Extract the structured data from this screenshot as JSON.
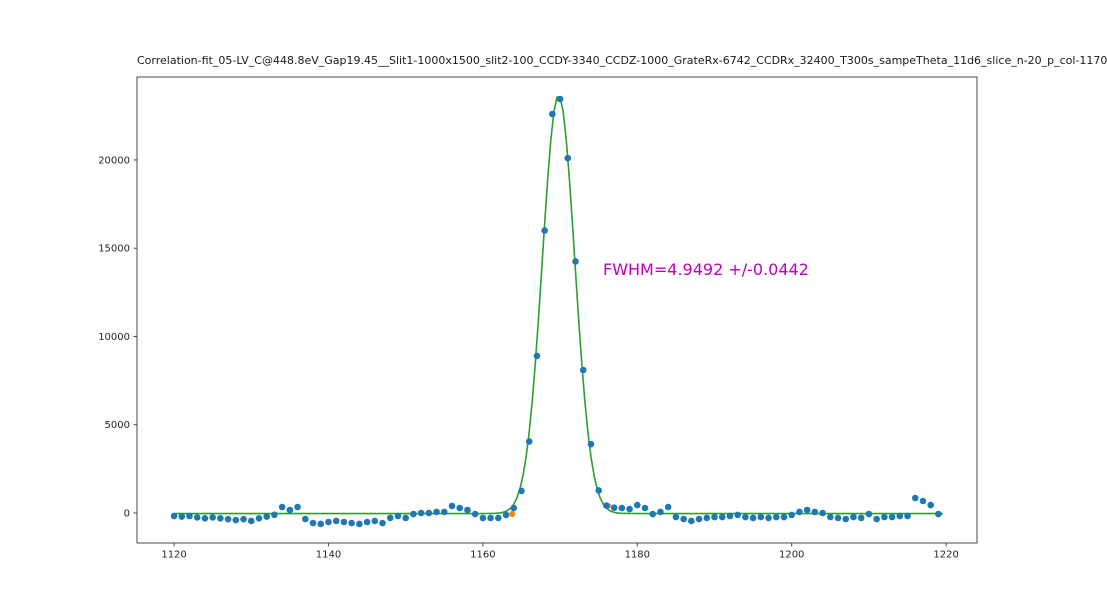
{
  "figure": {
    "background": "#ffffff"
  },
  "chart_data": {
    "type": "scatter",
    "title": "Correlation-fit_05-LV_C@448.8eV_Gap19.45__Slit1-1000x1500_slit2-100_CCDY-3340_CCDZ-1000_GrateRx-6742_CCDRx_32400_T300s_sampeTheta_11d6_slice_n-20_p_col-1170",
    "xlabel": "",
    "ylabel": "",
    "xlim": [
      1115.2,
      1224.0
    ],
    "ylim": [
      -1700,
      24700
    ],
    "x_ticks": [
      1120,
      1140,
      1160,
      1180,
      1200,
      1220
    ],
    "y_ticks": [
      0,
      5000,
      10000,
      15000,
      20000
    ],
    "grid": false,
    "legend": "none",
    "axes_color": "#4a4a4a",
    "tick_label_color": "#262626",
    "annotation": {
      "text": "FWHM=4.9492 +/-0.0442",
      "color": "#bf00bf",
      "x": 1175.5,
      "y": 13800
    },
    "series": [
      {
        "name": "secondary-markers",
        "type": "scatter",
        "color": "#ff7f0e",
        "marker_radius": 3.0,
        "x": [
          1163.8,
          1176.2
        ],
        "y": [
          -60,
          400
        ]
      },
      {
        "name": "gaussian-fit",
        "type": "line",
        "color": "#2ca02c",
        "line_width": 1.6,
        "fit_params": {
          "amplitude": 23700,
          "center": 1169.8,
          "sigma": 2.1016,
          "baseline": -30,
          "fwhm": 4.9492,
          "fwhm_err": 0.0442
        },
        "x_range": [
          1120,
          1219.8
        ],
        "sample_step": 0.4
      },
      {
        "name": "measured-data",
        "type": "scatter",
        "color": "#1f77b4",
        "marker_radius": 3.3,
        "x": [
          1120,
          1121,
          1122,
          1123,
          1124,
          1125,
          1126,
          1127,
          1128,
          1129,
          1130,
          1131,
          1132,
          1133,
          1134,
          1135,
          1136,
          1137,
          1138,
          1139,
          1140,
          1141,
          1142,
          1143,
          1144,
          1145,
          1146,
          1147,
          1148,
          1149,
          1150,
          1151,
          1152,
          1153,
          1154,
          1155,
          1156,
          1157,
          1158,
          1159,
          1160,
          1161,
          1162,
          1163,
          1164,
          1165,
          1166,
          1167,
          1168,
          1169,
          1170,
          1171,
          1172,
          1173,
          1174,
          1175,
          1176,
          1177,
          1178,
          1179,
          1180,
          1181,
          1182,
          1183,
          1184,
          1185,
          1186,
          1187,
          1188,
          1189,
          1190,
          1191,
          1192,
          1193,
          1194,
          1195,
          1196,
          1197,
          1198,
          1199,
          1200,
          1201,
          1202,
          1203,
          1204,
          1205,
          1206,
          1207,
          1208,
          1209,
          1210,
          1211,
          1212,
          1213,
          1214,
          1215,
          1216,
          1217,
          1218,
          1219
        ],
        "y": [
          -170,
          -200,
          -170,
          -250,
          -300,
          -250,
          -300,
          -350,
          -400,
          -350,
          -450,
          -300,
          -200,
          -100,
          340,
          170,
          340,
          -340,
          -570,
          -620,
          -510,
          -450,
          -510,
          -570,
          -620,
          -510,
          -450,
          -570,
          -280,
          -170,
          -280,
          -60,
          0,
          0,
          60,
          60,
          400,
          280,
          170,
          -60,
          -280,
          -280,
          -280,
          -110,
          280,
          1250,
          4050,
          8900,
          16000,
          22600,
          23450,
          20100,
          14250,
          8100,
          3900,
          1280,
          420,
          300,
          280,
          225,
          450,
          280,
          -60,
          60,
          340,
          -230,
          -340,
          -450,
          -340,
          -280,
          -230,
          -230,
          -170,
          -110,
          -230,
          -280,
          -230,
          -280,
          -230,
          -230,
          -110,
          60,
          170,
          60,
          0,
          -230,
          -280,
          -340,
          -230,
          -280,
          -60,
          -340,
          -230,
          -230,
          -170,
          -170,
          850,
          680,
          450,
          -60
        ]
      }
    ]
  }
}
